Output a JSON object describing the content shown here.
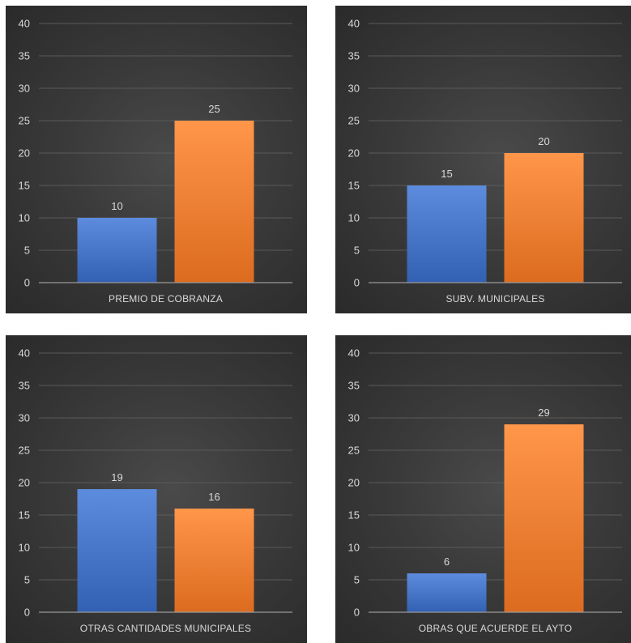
{
  "colors": {
    "series1": "#4472c4",
    "series2": "#ed7d31"
  },
  "chart_data": [
    {
      "type": "bar",
      "categories": [
        "PREMIO DE COBRANZA"
      ],
      "series": [
        {
          "values": [
            10
          ]
        },
        {
          "values": [
            25
          ]
        }
      ],
      "ylim": [
        0,
        40
      ],
      "yticks": [
        "0",
        "5",
        "10",
        "15",
        "20",
        "25",
        "30",
        "35",
        "40"
      ],
      "grid": true
    },
    {
      "type": "bar",
      "categories": [
        "SUBV. MUNICIPALES"
      ],
      "series": [
        {
          "values": [
            15
          ]
        },
        {
          "values": [
            20
          ]
        }
      ],
      "ylim": [
        0,
        40
      ],
      "yticks": [
        "0",
        "5",
        "10",
        "15",
        "20",
        "25",
        "30",
        "35",
        "40"
      ],
      "grid": true
    },
    {
      "type": "bar",
      "categories": [
        "OTRAS CANTIDADES MUNICIPALES"
      ],
      "series": [
        {
          "values": [
            19
          ]
        },
        {
          "values": [
            16
          ]
        }
      ],
      "ylim": [
        0,
        40
      ],
      "yticks": [
        "0",
        "5",
        "10",
        "15",
        "20",
        "25",
        "30",
        "35",
        "40"
      ],
      "grid": true
    },
    {
      "type": "bar",
      "categories": [
        "OBRAS QUE ACUERDE EL AYTO"
      ],
      "series": [
        {
          "values": [
            6
          ]
        },
        {
          "values": [
            29
          ]
        }
      ],
      "ylim": [
        0,
        40
      ],
      "yticks": [
        "0",
        "5",
        "10",
        "15",
        "20",
        "25",
        "30",
        "35",
        "40"
      ],
      "grid": true
    }
  ]
}
